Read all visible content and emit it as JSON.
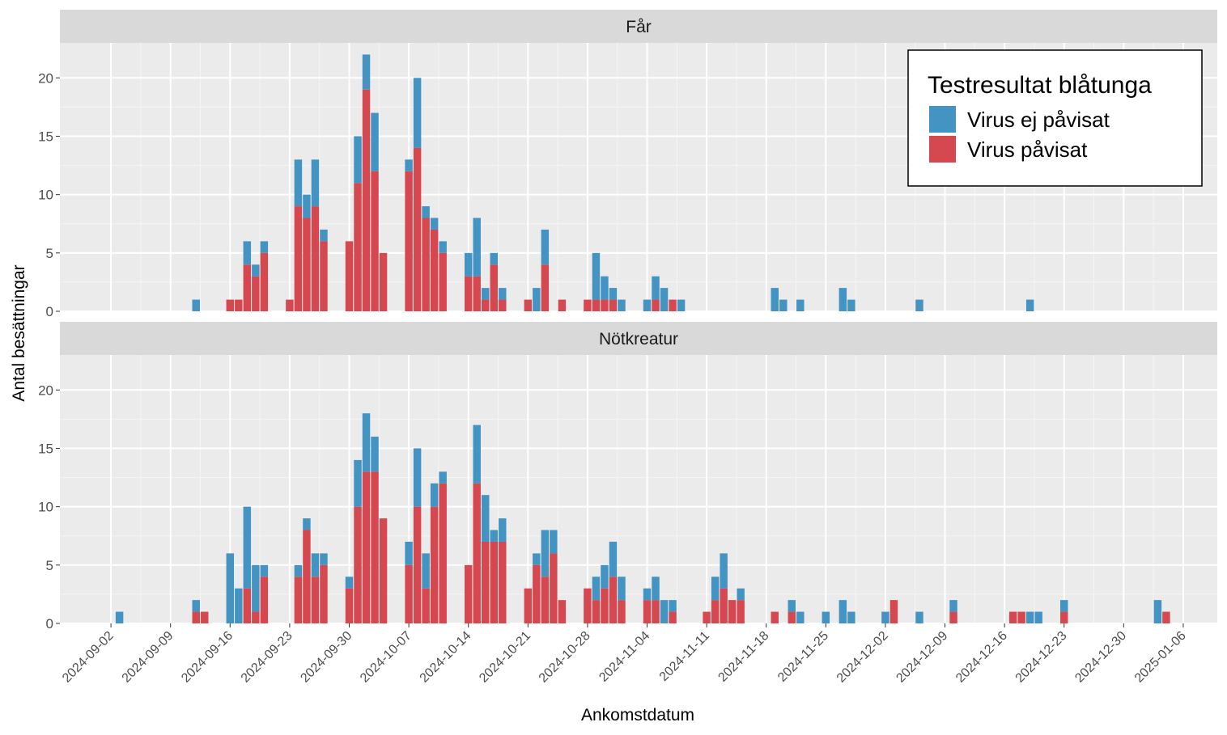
{
  "chart_data": {
    "type": "bar",
    "stacked": true,
    "faceted": true,
    "xlabel": "Ankomstdatum",
    "ylabel": "Antal besättningar",
    "ylim": [
      0,
      23
    ],
    "yticks": [
      0,
      5,
      10,
      15,
      20
    ],
    "xlim": [
      "2024-08-27",
      "2025-01-10"
    ],
    "xticks": [
      "2024-09-02",
      "2024-09-09",
      "2024-09-16",
      "2024-09-23",
      "2024-09-30",
      "2024-10-07",
      "2024-10-14",
      "2024-10-21",
      "2024-10-28",
      "2024-11-04",
      "2024-11-11",
      "2024-11-18",
      "2024-11-25",
      "2024-12-02",
      "2024-12-09",
      "2024-12-16",
      "2024-12-23",
      "2024-12-30",
      "2025-01-06"
    ],
    "grid": true,
    "legend": {
      "title": "Testresultat blåtunga",
      "placement": "top-right",
      "entries": [
        {
          "label": "Virus ej påvisat",
          "color": "#4393c3"
        },
        {
          "label": "Virus påvisat",
          "color": "#d6484f"
        }
      ]
    },
    "series_colors": {
      "pos": "#d6484f",
      "neg": "#4393c3"
    },
    "facets": [
      {
        "title": "Får",
        "data": [
          {
            "date": "2024-09-12",
            "pos": 0,
            "neg": 1
          },
          {
            "date": "2024-09-16",
            "pos": 1,
            "neg": 0
          },
          {
            "date": "2024-09-17",
            "pos": 1,
            "neg": 0
          },
          {
            "date": "2024-09-18",
            "pos": 4,
            "neg": 2
          },
          {
            "date": "2024-09-19",
            "pos": 3,
            "neg": 1
          },
          {
            "date": "2024-09-20",
            "pos": 5,
            "neg": 1
          },
          {
            "date": "2024-09-23",
            "pos": 1,
            "neg": 0
          },
          {
            "date": "2024-09-24",
            "pos": 9,
            "neg": 4
          },
          {
            "date": "2024-09-25",
            "pos": 8,
            "neg": 2
          },
          {
            "date": "2024-09-26",
            "pos": 9,
            "neg": 4
          },
          {
            "date": "2024-09-27",
            "pos": 6,
            "neg": 1
          },
          {
            "date": "2024-09-30",
            "pos": 6,
            "neg": 0
          },
          {
            "date": "2024-10-01",
            "pos": 11,
            "neg": 4
          },
          {
            "date": "2024-10-02",
            "pos": 19,
            "neg": 3
          },
          {
            "date": "2024-10-03",
            "pos": 12,
            "neg": 5
          },
          {
            "date": "2024-10-04",
            "pos": 5,
            "neg": 0
          },
          {
            "date": "2024-10-07",
            "pos": 12,
            "neg": 1
          },
          {
            "date": "2024-10-08",
            "pos": 14,
            "neg": 6
          },
          {
            "date": "2024-10-09",
            "pos": 8,
            "neg": 1
          },
          {
            "date": "2024-10-10",
            "pos": 7,
            "neg": 1
          },
          {
            "date": "2024-10-11",
            "pos": 5,
            "neg": 1
          },
          {
            "date": "2024-10-14",
            "pos": 3,
            "neg": 2
          },
          {
            "date": "2024-10-15",
            "pos": 3,
            "neg": 5
          },
          {
            "date": "2024-10-16",
            "pos": 1,
            "neg": 1
          },
          {
            "date": "2024-10-17",
            "pos": 4,
            "neg": 1
          },
          {
            "date": "2024-10-18",
            "pos": 1,
            "neg": 1
          },
          {
            "date": "2024-10-21",
            "pos": 1,
            "neg": 0
          },
          {
            "date": "2024-10-22",
            "pos": 0,
            "neg": 2
          },
          {
            "date": "2024-10-23",
            "pos": 4,
            "neg": 3
          },
          {
            "date": "2024-10-25",
            "pos": 1,
            "neg": 0
          },
          {
            "date": "2024-10-28",
            "pos": 1,
            "neg": 0
          },
          {
            "date": "2024-10-29",
            "pos": 1,
            "neg": 4
          },
          {
            "date": "2024-10-30",
            "pos": 1,
            "neg": 2
          },
          {
            "date": "2024-10-31",
            "pos": 1,
            "neg": 1
          },
          {
            "date": "2024-11-01",
            "pos": 0,
            "neg": 1
          },
          {
            "date": "2024-11-04",
            "pos": 0,
            "neg": 1
          },
          {
            "date": "2024-11-05",
            "pos": 1,
            "neg": 2
          },
          {
            "date": "2024-11-06",
            "pos": 0,
            "neg": 2
          },
          {
            "date": "2024-11-07",
            "pos": 1,
            "neg": 0
          },
          {
            "date": "2024-11-08",
            "pos": 0,
            "neg": 1
          },
          {
            "date": "2024-11-19",
            "pos": 0,
            "neg": 2
          },
          {
            "date": "2024-11-20",
            "pos": 0,
            "neg": 1
          },
          {
            "date": "2024-11-22",
            "pos": 0,
            "neg": 1
          },
          {
            "date": "2024-11-27",
            "pos": 0,
            "neg": 2
          },
          {
            "date": "2024-11-28",
            "pos": 0,
            "neg": 1
          },
          {
            "date": "2024-12-06",
            "pos": 0,
            "neg": 1
          },
          {
            "date": "2024-12-19",
            "pos": 0,
            "neg": 1
          }
        ]
      },
      {
        "title": "Nötkreatur",
        "data": [
          {
            "date": "2024-09-03",
            "pos": 0,
            "neg": 1
          },
          {
            "date": "2024-09-12",
            "pos": 1,
            "neg": 1
          },
          {
            "date": "2024-09-13",
            "pos": 1,
            "neg": 0
          },
          {
            "date": "2024-09-16",
            "pos": 0,
            "neg": 6
          },
          {
            "date": "2024-09-17",
            "pos": 0,
            "neg": 3
          },
          {
            "date": "2024-09-18",
            "pos": 3,
            "neg": 7
          },
          {
            "date": "2024-09-19",
            "pos": 1,
            "neg": 4
          },
          {
            "date": "2024-09-20",
            "pos": 4,
            "neg": 1
          },
          {
            "date": "2024-09-24",
            "pos": 4,
            "neg": 1
          },
          {
            "date": "2024-09-25",
            "pos": 8,
            "neg": 1
          },
          {
            "date": "2024-09-26",
            "pos": 4,
            "neg": 2
          },
          {
            "date": "2024-09-27",
            "pos": 5,
            "neg": 1
          },
          {
            "date": "2024-09-30",
            "pos": 3,
            "neg": 1
          },
          {
            "date": "2024-10-01",
            "pos": 10,
            "neg": 4
          },
          {
            "date": "2024-10-02",
            "pos": 13,
            "neg": 5
          },
          {
            "date": "2024-10-03",
            "pos": 13,
            "neg": 3
          },
          {
            "date": "2024-10-04",
            "pos": 9,
            "neg": 0
          },
          {
            "date": "2024-10-07",
            "pos": 5,
            "neg": 2
          },
          {
            "date": "2024-10-08",
            "pos": 10,
            "neg": 5
          },
          {
            "date": "2024-10-09",
            "pos": 3,
            "neg": 3
          },
          {
            "date": "2024-10-10",
            "pos": 10,
            "neg": 2
          },
          {
            "date": "2024-10-11",
            "pos": 12,
            "neg": 1
          },
          {
            "date": "2024-10-14",
            "pos": 5,
            "neg": 0
          },
          {
            "date": "2024-10-15",
            "pos": 12,
            "neg": 5
          },
          {
            "date": "2024-10-16",
            "pos": 7,
            "neg": 4
          },
          {
            "date": "2024-10-17",
            "pos": 7,
            "neg": 1
          },
          {
            "date": "2024-10-18",
            "pos": 7,
            "neg": 2
          },
          {
            "date": "2024-10-21",
            "pos": 3,
            "neg": 0
          },
          {
            "date": "2024-10-22",
            "pos": 5,
            "neg": 1
          },
          {
            "date": "2024-10-23",
            "pos": 4,
            "neg": 4
          },
          {
            "date": "2024-10-24",
            "pos": 6,
            "neg": 2
          },
          {
            "date": "2024-10-25",
            "pos": 2,
            "neg": 0
          },
          {
            "date": "2024-10-28",
            "pos": 3,
            "neg": 0
          },
          {
            "date": "2024-10-29",
            "pos": 2,
            "neg": 2
          },
          {
            "date": "2024-10-30",
            "pos": 3,
            "neg": 2
          },
          {
            "date": "2024-10-31",
            "pos": 4,
            "neg": 3
          },
          {
            "date": "2024-11-01",
            "pos": 2,
            "neg": 2
          },
          {
            "date": "2024-11-04",
            "pos": 2,
            "neg": 1
          },
          {
            "date": "2024-11-05",
            "pos": 2,
            "neg": 2
          },
          {
            "date": "2024-11-06",
            "pos": 0,
            "neg": 2
          },
          {
            "date": "2024-11-07",
            "pos": 1,
            "neg": 1
          },
          {
            "date": "2024-11-11",
            "pos": 1,
            "neg": 0
          },
          {
            "date": "2024-11-12",
            "pos": 2,
            "neg": 2
          },
          {
            "date": "2024-11-13",
            "pos": 3,
            "neg": 3
          },
          {
            "date": "2024-11-14",
            "pos": 2,
            "neg": 0
          },
          {
            "date": "2024-11-15",
            "pos": 2,
            "neg": 1
          },
          {
            "date": "2024-11-19",
            "pos": 1,
            "neg": 0
          },
          {
            "date": "2024-11-21",
            "pos": 1,
            "neg": 1
          },
          {
            "date": "2024-11-22",
            "pos": 0,
            "neg": 1
          },
          {
            "date": "2024-11-25",
            "pos": 0,
            "neg": 1
          },
          {
            "date": "2024-11-27",
            "pos": 0,
            "neg": 2
          },
          {
            "date": "2024-11-28",
            "pos": 0,
            "neg": 1
          },
          {
            "date": "2024-12-02",
            "pos": 0,
            "neg": 1
          },
          {
            "date": "2024-12-03",
            "pos": 2,
            "neg": 0
          },
          {
            "date": "2024-12-06",
            "pos": 0,
            "neg": 1
          },
          {
            "date": "2024-12-10",
            "pos": 1,
            "neg": 1
          },
          {
            "date": "2024-12-17",
            "pos": 1,
            "neg": 0
          },
          {
            "date": "2024-12-18",
            "pos": 1,
            "neg": 0
          },
          {
            "date": "2024-12-19",
            "pos": 0,
            "neg": 1
          },
          {
            "date": "2024-12-20",
            "pos": 0,
            "neg": 1
          },
          {
            "date": "2024-12-23",
            "pos": 1,
            "neg": 1
          },
          {
            "date": "2025-01-03",
            "pos": 0,
            "neg": 2
          },
          {
            "date": "2025-01-04",
            "pos": 1,
            "neg": 0
          }
        ]
      }
    ]
  }
}
